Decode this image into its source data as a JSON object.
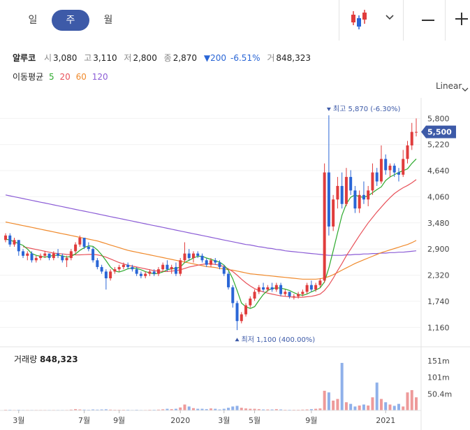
{
  "tabs": [
    {
      "label": "일",
      "active": false
    },
    {
      "label": "주",
      "active": true
    },
    {
      "label": "월",
      "active": false
    }
  ],
  "toolbar": {
    "chart_type_icon": "candlestick-icon",
    "dropdown_icon": "chevron-down-icon",
    "zoom_out_icon": "minus-icon",
    "zoom_in_icon": "plus-icon"
  },
  "quote": {
    "name": "알루코",
    "open_label": "시",
    "open": "3,080",
    "high_label": "고",
    "high": "3,110",
    "low_label": "저",
    "low": "2,800",
    "close_label": "종",
    "close": "2,870",
    "change_arrow": "▼",
    "change": "200",
    "change_pct": "-6.51%",
    "volume_label": "거",
    "volume": "848,323"
  },
  "moving_average": {
    "label": "이동평균",
    "periods": [
      {
        "value": "5",
        "color": "#2eaa2e"
      },
      {
        "value": "20",
        "color": "#e8525a"
      },
      {
        "value": "60",
        "color": "#f08a2c"
      },
      {
        "value": "120",
        "color": "#8b5cd6"
      }
    ]
  },
  "scale_mode": "Linear",
  "colors": {
    "up": "#e03c3c",
    "down": "#2a66d6",
    "current_price_bg": "#3d5aa8",
    "annotation": "#3d5aa8"
  },
  "chart_data": {
    "type": "candlestick",
    "y_ticks": [
      "5,800",
      "5,220",
      "4,640",
      "4,060",
      "3,480",
      "2,900",
      "2,320",
      "1,740",
      "1,160"
    ],
    "y_tick_values": [
      5800,
      5220,
      4640,
      4060,
      3480,
      2900,
      2320,
      1740,
      1160
    ],
    "ylim": [
      900,
      6100
    ],
    "x_ticks": [
      "3월",
      "7월",
      "9월",
      "2020",
      "3월",
      "5월",
      "9월",
      "2021"
    ],
    "current_price": "5,500",
    "current_price_value": 5500,
    "high_annotation": "최고 5,870 (-6.30%)",
    "low_annotation": "최저 1,100 (400.00%)",
    "candles": [
      [
        3100,
        3250,
        3050,
        3200
      ],
      [
        3200,
        3250,
        2950,
        3000
      ],
      [
        3000,
        3150,
        2950,
        3100
      ],
      [
        3100,
        3100,
        2750,
        2850
      ],
      [
        2850,
        2900,
        2700,
        2750
      ],
      [
        2750,
        2850,
        2650,
        2800
      ],
      [
        2800,
        2850,
        2600,
        2650
      ],
      [
        2650,
        2750,
        2600,
        2700
      ],
      [
        2700,
        2800,
        2650,
        2750
      ],
      [
        2750,
        2850,
        2700,
        2800
      ],
      [
        2800,
        2800,
        2650,
        2700
      ],
      [
        2700,
        2850,
        2650,
        2800
      ],
      [
        2800,
        2900,
        2700,
        2750
      ],
      [
        2750,
        2800,
        2600,
        2650
      ],
      [
        2650,
        2750,
        2500,
        2700
      ],
      [
        2700,
        2900,
        2650,
        2850
      ],
      [
        2850,
        3050,
        2800,
        3000
      ],
      [
        3000,
        3200,
        2950,
        3150
      ],
      [
        3150,
        3150,
        2900,
        2950
      ],
      [
        2950,
        3050,
        2850,
        2900
      ],
      [
        2900,
        2950,
        2600,
        2650
      ],
      [
        2650,
        2700,
        2450,
        2500
      ],
      [
        2500,
        2550,
        2350,
        2400
      ],
      [
        2400,
        2450,
        2000,
        2250
      ],
      [
        2250,
        2450,
        2200,
        2400
      ],
      [
        2400,
        2500,
        2350,
        2450
      ],
      [
        2450,
        2550,
        2400,
        2500
      ],
      [
        2500,
        2600,
        2450,
        2550
      ],
      [
        2550,
        2600,
        2450,
        2500
      ],
      [
        2500,
        2550,
        2400,
        2450
      ],
      [
        2450,
        2500,
        2300,
        2350
      ],
      [
        2350,
        2400,
        2250,
        2300
      ],
      [
        2300,
        2400,
        2250,
        2350
      ],
      [
        2350,
        2450,
        2300,
        2400
      ],
      [
        2400,
        2450,
        2300,
        2350
      ],
      [
        2350,
        2500,
        2300,
        2450
      ],
      [
        2450,
        2600,
        2400,
        2550
      ],
      [
        2550,
        2650,
        2400,
        2450
      ],
      [
        2450,
        2550,
        2350,
        2500
      ],
      [
        2500,
        2600,
        2300,
        2350
      ],
      [
        2350,
        2700,
        2300,
        2650
      ],
      [
        2650,
        3050,
        2600,
        2800
      ],
      [
        2800,
        2900,
        2650,
        2700
      ],
      [
        2700,
        2850,
        2600,
        2800
      ],
      [
        2800,
        2850,
        2700,
        2750
      ],
      [
        2750,
        2800,
        2600,
        2650
      ],
      [
        2650,
        2700,
        2500,
        2550
      ],
      [
        2550,
        2700,
        2500,
        2650
      ],
      [
        2650,
        2700,
        2550,
        2600
      ],
      [
        2600,
        2650,
        2450,
        2500
      ],
      [
        2500,
        2550,
        2300,
        2350
      ],
      [
        2350,
        2400,
        2000,
        2050
      ],
      [
        2050,
        2100,
        1600,
        1700
      ],
      [
        1700,
        1750,
        1100,
        1300
      ],
      [
        1300,
        1500,
        1250,
        1450
      ],
      [
        1450,
        1700,
        1400,
        1650
      ],
      [
        1650,
        1850,
        1600,
        1800
      ],
      [
        1800,
        2000,
        1750,
        1950
      ],
      [
        1950,
        2100,
        1900,
        2050
      ],
      [
        2050,
        2150,
        1950,
        2000
      ],
      [
        2000,
        2100,
        1950,
        2050
      ],
      [
        2050,
        2150,
        1950,
        2000
      ],
      [
        2000,
        2150,
        1950,
        2100
      ],
      [
        2100,
        2150,
        1850,
        1900
      ],
      [
        1900,
        2000,
        1850,
        1950
      ],
      [
        1950,
        1950,
        1800,
        1850
      ],
      [
        1850,
        1900,
        1780,
        1850
      ],
      [
        1850,
        1950,
        1800,
        1900
      ],
      [
        1900,
        2000,
        1850,
        1950
      ],
      [
        1950,
        2150,
        1900,
        2100
      ],
      [
        2100,
        2200,
        1950,
        2000
      ],
      [
        2000,
        2150,
        1950,
        2100
      ],
      [
        2100,
        2250,
        2050,
        2200
      ],
      [
        2200,
        4800,
        2150,
        4600
      ],
      [
        4600,
        5870,
        3200,
        3400
      ],
      [
        3400,
        4100,
        3300,
        4000
      ],
      [
        4000,
        4500,
        3800,
        4300
      ],
      [
        4300,
        4600,
        3800,
        3900
      ],
      [
        3900,
        4700,
        3850,
        4500
      ],
      [
        4500,
        4650,
        4100,
        4200
      ],
      [
        4200,
        4300,
        3700,
        3800
      ],
      [
        3800,
        4200,
        3700,
        4100
      ],
      [
        4100,
        4400,
        3900,
        4000
      ],
      [
        4000,
        4300,
        3850,
        4200
      ],
      [
        4200,
        4800,
        4100,
        4600
      ],
      [
        4600,
        4700,
        4300,
        4400
      ],
      [
        4400,
        5200,
        4350,
        4900
      ],
      [
        4900,
        5000,
        4550,
        4650
      ],
      [
        4650,
        4800,
        4500,
        4750
      ],
      [
        4750,
        4800,
        4500,
        4600
      ],
      [
        4600,
        4700,
        4400,
        4550
      ],
      [
        4550,
        5100,
        4500,
        4900
      ],
      [
        4900,
        5300,
        4800,
        5200
      ],
      [
        5200,
        5700,
        5100,
        5500
      ],
      [
        5500,
        5800,
        5400,
        5500
      ]
    ],
    "volume_ticks": [
      "151m",
      "101m",
      "50.4m"
    ],
    "volume_tick_values": [
      151,
      101,
      50.4
    ],
    "volume_ylim": [
      0,
      175
    ],
    "volume_label": "거래량",
    "volume_value": "848,323",
    "volumes": [
      2,
      2,
      1.5,
      2,
      1.5,
      1.5,
      1.5,
      1.5,
      1.5,
      1.5,
      1.5,
      1.5,
      1.5,
      1.5,
      1.5,
      2.5,
      4,
      3,
      2.5,
      2,
      3,
      2.5,
      3,
      3.5,
      2.5,
      2,
      2,
      2,
      2,
      1.5,
      2,
      1.5,
      1.5,
      2,
      2,
      2.5,
      3.5,
      5,
      4,
      5,
      9,
      18,
      12,
      7,
      5,
      5,
      4,
      6,
      5,
      3,
      5,
      8,
      12,
      14,
      8,
      6,
      5,
      5,
      4,
      3,
      3,
      3,
      4,
      3,
      2,
      2,
      2,
      2,
      2.5,
      3,
      4,
      5,
      6,
      60,
      55,
      30,
      35,
      145,
      25,
      20,
      12,
      15,
      18,
      15,
      40,
      85,
      35,
      25,
      18,
      14,
      20,
      12,
      55,
      62,
      40
    ],
    "ma5": [
      3120,
      3100,
      3060,
      3020,
      2980,
      2900,
      2800,
      2760,
      2740,
      2720,
      2740,
      2760,
      2760,
      2750,
      2720,
      2740,
      2790,
      2870,
      2930,
      2970,
      2960,
      2880,
      2770,
      2640,
      2500,
      2410,
      2390,
      2420,
      2460,
      2480,
      2470,
      2440,
      2400,
      2370,
      2350,
      2360,
      2390,
      2440,
      2460,
      2470,
      2500,
      2600,
      2650,
      2700,
      2740,
      2740,
      2700,
      2670,
      2640,
      2610,
      2540,
      2430,
      2240,
      1980,
      1700,
      1620,
      1580,
      1620,
      1760,
      1890,
      1980,
      2020,
      2040,
      2030,
      2010,
      1980,
      1930,
      1890,
      1870,
      1900,
      1950,
      1990,
      2040,
      2170,
      2480,
      2860,
      3260,
      3650,
      3900,
      4050,
      4100,
      4060,
      4050,
      4080,
      4150,
      4220,
      4280,
      4420,
      4500,
      4550,
      4600,
      4640,
      4680,
      4800,
      4900
    ],
    "ma20": [
      null,
      null,
      null,
      null,
      2950,
      2930,
      2910,
      2890,
      2870,
      2850,
      2830,
      2810,
      2800,
      2790,
      2780,
      2775,
      2770,
      2770,
      2775,
      2780,
      2780,
      2770,
      2750,
      2720,
      2680,
      2640,
      2600,
      2570,
      2540,
      2520,
      2500,
      2480,
      2460,
      2440,
      2420,
      2410,
      2400,
      2400,
      2410,
      2420,
      2440,
      2470,
      2500,
      2520,
      2540,
      2560,
      2570,
      2570,
      2560,
      2540,
      2510,
      2460,
      2400,
      2320,
      2230,
      2150,
      2080,
      2020,
      1980,
      1950,
      1920,
      1900,
      1880,
      1860,
      1850,
      1840,
      1830,
      1830,
      1830,
      1840,
      1850,
      1870,
      1900,
      1980,
      2100,
      2250,
      2420,
      2580,
      2750,
      2900,
      3050,
      3200,
      3340,
      3480,
      3600,
      3720,
      3830,
      3940,
      4040,
      4130,
      4200,
      4260,
      4310,
      4370,
      4440
    ],
    "ma60": [
      3500,
      3480,
      3460,
      3440,
      3420,
      3400,
      3380,
      3360,
      3340,
      3320,
      3300,
      3280,
      3260,
      3240,
      3220,
      3200,
      3180,
      3160,
      3140,
      3120,
      3100,
      3080,
      3050,
      3020,
      2990,
      2960,
      2930,
      2900,
      2870,
      2850,
      2830,
      2810,
      2790,
      2770,
      2750,
      2730,
      2710,
      2690,
      2670,
      2650,
      2630,
      2610,
      2590,
      2570,
      2550,
      2530,
      2510,
      2500,
      2490,
      2470,
      2460,
      2440,
      2430,
      2410,
      2390,
      2370,
      2350,
      2340,
      2330,
      2320,
      2310,
      2300,
      2290,
      2280,
      2270,
      2260,
      2250,
      2240,
      2230,
      2230,
      2230,
      2230,
      2240,
      2260,
      2290,
      2330,
      2380,
      2430,
      2480,
      2530,
      2580,
      2620,
      2660,
      2700,
      2740,
      2780,
      2820,
      2850,
      2880,
      2910,
      2940,
      2970,
      3000,
      3040,
      3090
    ],
    "ma120": [
      4100,
      4080,
      4060,
      4040,
      4020,
      4000,
      3980,
      3960,
      3940,
      3920,
      3900,
      3880,
      3860,
      3840,
      3820,
      3800,
      3780,
      3760,
      3740,
      3720,
      3700,
      3680,
      3660,
      3640,
      3620,
      3600,
      3580,
      3560,
      3540,
      3520,
      3500,
      3480,
      3460,
      3440,
      3420,
      3400,
      3380,
      3360,
      3340,
      3320,
      3300,
      3280,
      3260,
      3240,
      3220,
      3200,
      3180,
      3160,
      3140,
      3120,
      3100,
      3080,
      3060,
      3040,
      3020,
      3000,
      2990,
      2970,
      2950,
      2940,
      2920,
      2910,
      2890,
      2880,
      2860,
      2850,
      2840,
      2830,
      2820,
      2810,
      2800,
      2790,
      2780,
      2770,
      2760,
      2760,
      2760,
      2760,
      2770,
      2770,
      2780,
      2780,
      2790,
      2790,
      2800,
      2800,
      2810,
      2810,
      2820,
      2820,
      2830,
      2830,
      2840,
      2850,
      2860
    ]
  }
}
